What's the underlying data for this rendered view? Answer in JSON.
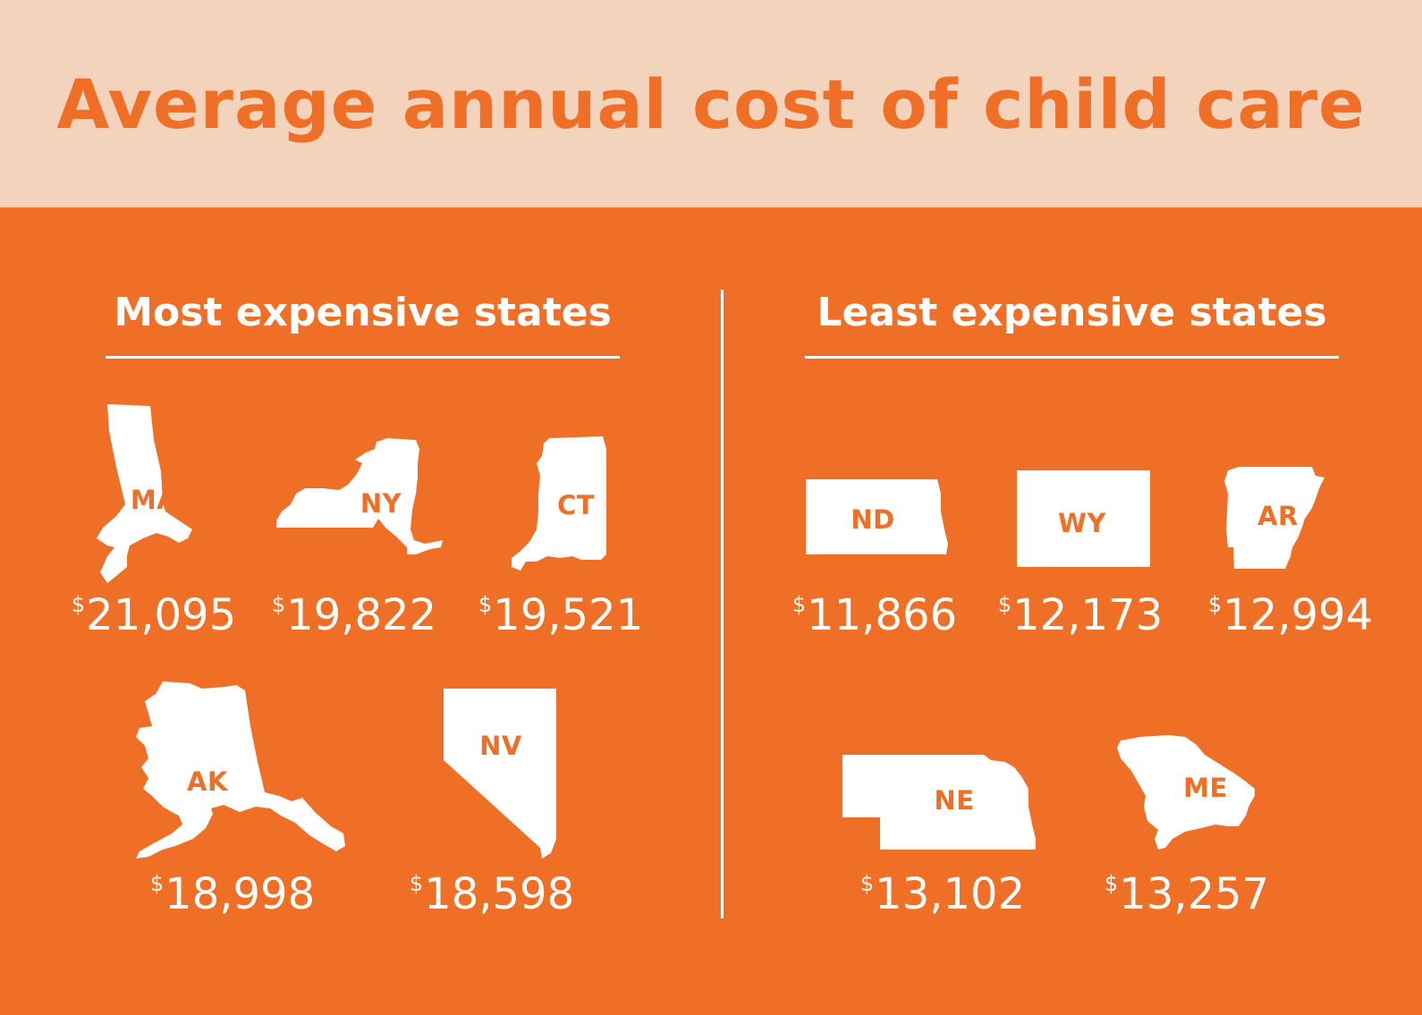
{
  "header": {
    "title": "Average annual cost of child care"
  },
  "colors": {
    "accent": "#ee6f25",
    "header_bg": "#f3d3bc",
    "text_light": "#ffffff"
  },
  "most_expensive": {
    "title": "Most expensive states",
    "states": [
      {
        "abbr": "MA",
        "currency": "$",
        "amount": "21,095"
      },
      {
        "abbr": "NY",
        "currency": "$",
        "amount": "19,822"
      },
      {
        "abbr": "CT",
        "currency": "$",
        "amount": "19,521"
      },
      {
        "abbr": "AK",
        "currency": "$",
        "amount": "18,998"
      },
      {
        "abbr": "NV",
        "currency": "$",
        "amount": "18,598"
      }
    ]
  },
  "least_expensive": {
    "title": "Least expensive states",
    "states": [
      {
        "abbr": "ND",
        "currency": "$",
        "amount": "11,866"
      },
      {
        "abbr": "WY",
        "currency": "$",
        "amount": "12,173"
      },
      {
        "abbr": "AR",
        "currency": "$",
        "amount": "12,994"
      },
      {
        "abbr": "NE",
        "currency": "$",
        "amount": "13,102"
      },
      {
        "abbr": "ME",
        "currency": "$",
        "amount": "13,257"
      }
    ]
  }
}
